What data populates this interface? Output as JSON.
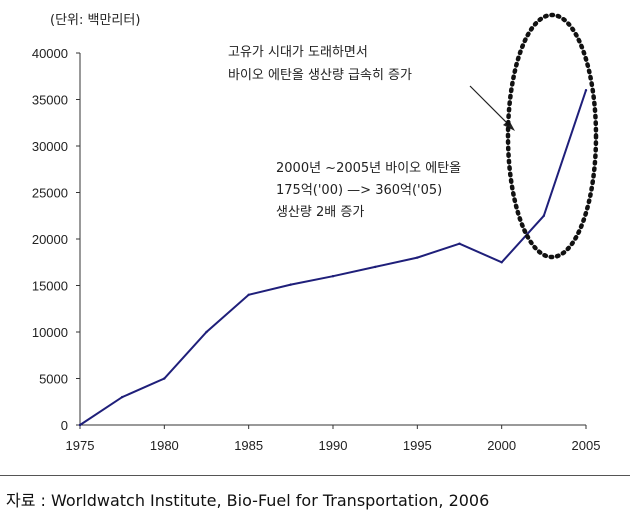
{
  "chart_data": {
    "type": "line",
    "unit_label": "(단위: 백만리터)",
    "x": [
      1975,
      1977.5,
      1980,
      1982.5,
      1985,
      1987.5,
      1990,
      1992.5,
      1995,
      1997.5,
      2000,
      2002.5,
      2005
    ],
    "y": [
      0,
      3000,
      5000,
      10000,
      14000,
      15100,
      16000,
      17000,
      18000,
      19500,
      17500,
      22500,
      36000
    ],
    "xlim": [
      1975,
      2005
    ],
    "ylim": [
      0,
      40000
    ],
    "xticks": [
      "1975",
      "1980",
      "1985",
      "1990",
      "1995",
      "2000",
      "2005"
    ],
    "yticks": [
      "0",
      "5000",
      "10000",
      "15000",
      "20000",
      "25000",
      "30000",
      "35000",
      "40000"
    ],
    "line_color": "#1f1f7a",
    "grid": false,
    "annotations": [
      {
        "lines": [
          "고유가 시대가 도래하면서",
          "바이오 에탄올 생산량 급속히 증가"
        ]
      },
      {
        "lines": [
          "2000년 ~2005년 바이오 에탄올",
          "175억('00) —> 360억('05)",
          "생산량 2배 증가"
        ]
      }
    ]
  },
  "source": "자료 : Worldwatch Institute, Bio-Fuel for Transportation, 2006"
}
